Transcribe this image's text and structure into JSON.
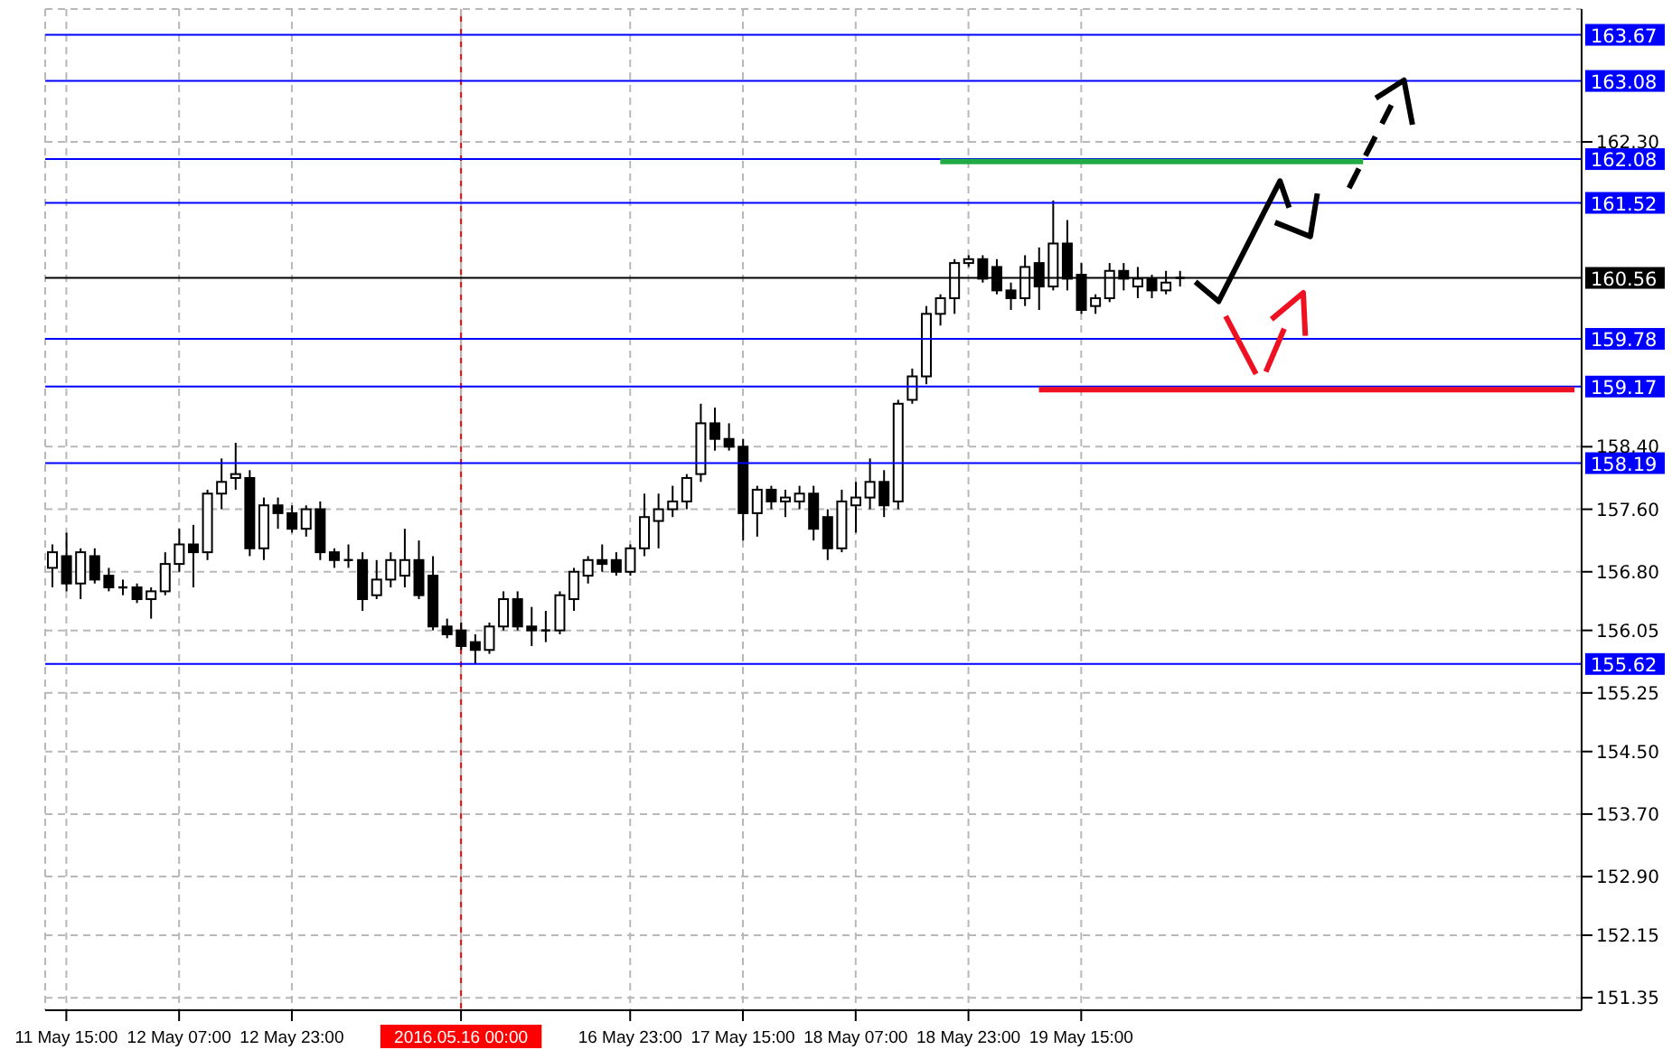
{
  "chart_data": {
    "type": "candlestick",
    "categories": [
      null,
      "11 May 15:00",
      null,
      null,
      null,
      null,
      null,
      null,
      null,
      "12 May 07:00",
      null,
      null,
      null,
      null,
      null,
      null,
      null,
      "12 May 23:00",
      null,
      null,
      null,
      null,
      null,
      null,
      null,
      null,
      null,
      null,
      null,
      "2016.05.16 00:00",
      null,
      null,
      null,
      null,
      null,
      null,
      null,
      null,
      null,
      null,
      null,
      "16 May 23:00",
      null,
      null,
      null,
      null,
      null,
      null,
      null,
      "17 May 15:00",
      null,
      null,
      null,
      null,
      null,
      null,
      null,
      "18 May 07:00",
      null,
      null,
      null,
      null,
      null,
      null,
      null,
      "18 May 23:00",
      null,
      null,
      null,
      null,
      null,
      null,
      null,
      "19 May 15:00",
      null,
      null,
      null,
      null,
      null,
      null,
      null,
      null,
      null,
      null,
      null,
      null,
      null,
      null,
      null,
      null,
      null,
      null,
      null,
      null,
      null,
      null,
      null,
      null,
      null,
      null,
      null,
      null,
      null,
      null,
      null,
      null,
      null,
      null,
      null
    ],
    "ohlc": [
      [
        156.85,
        157.15,
        156.6,
        157.05
      ],
      [
        157.0,
        157.3,
        156.55,
        156.65
      ],
      [
        156.65,
        157.1,
        156.45,
        157.05
      ],
      [
        157.0,
        157.1,
        156.65,
        156.7
      ],
      [
        156.75,
        156.85,
        156.55,
        156.6
      ],
      [
        156.6,
        156.7,
        156.5,
        156.6
      ],
      [
        156.6,
        156.65,
        156.4,
        156.45
      ],
      [
        156.45,
        156.6,
        156.2,
        156.55
      ],
      [
        156.55,
        157.05,
        156.5,
        156.9
      ],
      [
        156.9,
        157.35,
        156.8,
        157.15
      ],
      [
        157.15,
        157.4,
        156.6,
        157.05
      ],
      [
        157.05,
        157.85,
        156.95,
        157.8
      ],
      [
        157.8,
        158.25,
        157.6,
        157.95
      ],
      [
        158.0,
        158.45,
        157.85,
        158.05
      ],
      [
        158.0,
        158.1,
        157.0,
        157.1
      ],
      [
        157.1,
        157.75,
        156.95,
        157.65
      ],
      [
        157.65,
        157.75,
        157.35,
        157.55
      ],
      [
        157.55,
        157.65,
        157.3,
        157.35
      ],
      [
        157.35,
        157.65,
        157.25,
        157.6
      ],
      [
        157.6,
        157.7,
        156.95,
        157.05
      ],
      [
        157.05,
        157.1,
        156.85,
        156.95
      ],
      [
        156.95,
        157.15,
        156.85,
        156.95
      ],
      [
        156.95,
        157.05,
        156.3,
        156.45
      ],
      [
        156.5,
        156.95,
        156.45,
        156.7
      ],
      [
        156.7,
        157.05,
        156.6,
        156.95
      ],
      [
        156.75,
        157.35,
        156.6,
        156.95
      ],
      [
        156.95,
        157.2,
        156.45,
        156.5
      ],
      [
        156.75,
        157.0,
        156.05,
        156.1
      ],
      [
        156.1,
        156.2,
        155.95,
        156.0
      ],
      [
        156.05,
        156.15,
        155.8,
        155.85
      ],
      [
        155.9,
        156.0,
        155.62,
        155.8
      ],
      [
        155.8,
        156.15,
        155.75,
        156.1
      ],
      [
        156.1,
        156.55,
        156.05,
        156.45
      ],
      [
        156.45,
        156.55,
        156.05,
        156.1
      ],
      [
        156.1,
        156.35,
        155.85,
        156.05
      ],
      [
        156.05,
        156.3,
        155.9,
        156.05
      ],
      [
        156.05,
        156.55,
        156.0,
        156.5
      ],
      [
        156.45,
        156.85,
        156.3,
        156.8
      ],
      [
        156.75,
        157.0,
        156.65,
        156.95
      ],
      [
        156.95,
        157.15,
        156.8,
        156.9
      ],
      [
        156.95,
        157.05,
        156.75,
        156.8
      ],
      [
        156.8,
        157.15,
        156.75,
        157.1
      ],
      [
        157.1,
        157.8,
        157.0,
        157.5
      ],
      [
        157.45,
        157.8,
        157.1,
        157.6
      ],
      [
        157.6,
        157.9,
        157.5,
        157.7
      ],
      [
        157.7,
        158.05,
        157.6,
        158.0
      ],
      [
        158.05,
        158.95,
        157.95,
        158.7
      ],
      [
        158.7,
        158.9,
        158.35,
        158.5
      ],
      [
        158.5,
        158.7,
        158.35,
        158.4
      ],
      [
        158.4,
        158.5,
        157.2,
        157.55
      ],
      [
        157.55,
        157.9,
        157.25,
        157.85
      ],
      [
        157.85,
        157.9,
        157.6,
        157.7
      ],
      [
        157.7,
        157.85,
        157.5,
        157.75
      ],
      [
        157.7,
        157.9,
        157.6,
        157.8
      ],
      [
        157.8,
        157.9,
        157.2,
        157.35
      ],
      [
        157.5,
        157.6,
        156.95,
        157.1
      ],
      [
        157.1,
        157.85,
        157.05,
        157.7
      ],
      [
        157.65,
        157.95,
        157.3,
        157.75
      ],
      [
        157.75,
        158.25,
        157.6,
        157.95
      ],
      [
        157.95,
        158.1,
        157.5,
        157.65
      ],
      [
        157.7,
        159.0,
        157.6,
        158.95
      ],
      [
        159.0,
        159.4,
        158.95,
        159.3
      ],
      [
        159.3,
        160.2,
        159.2,
        160.1
      ],
      [
        160.1,
        160.35,
        159.95,
        160.3
      ],
      [
        160.3,
        160.8,
        160.1,
        160.75
      ],
      [
        160.75,
        160.85,
        160.7,
        160.8
      ],
      [
        160.8,
        160.85,
        160.5,
        160.55
      ],
      [
        160.7,
        160.8,
        160.35,
        160.4
      ],
      [
        160.4,
        160.5,
        160.15,
        160.3
      ],
      [
        160.3,
        160.85,
        160.2,
        160.7
      ],
      [
        160.75,
        160.95,
        160.15,
        160.45
      ],
      [
        160.45,
        161.55,
        160.4,
        161.0
      ],
      [
        161.0,
        161.3,
        160.4,
        160.55
      ],
      [
        160.6,
        160.75,
        160.1,
        160.15
      ],
      [
        160.2,
        160.35,
        160.1,
        160.3
      ],
      [
        160.3,
        160.75,
        160.25,
        160.65
      ],
      [
        160.65,
        160.75,
        160.4,
        160.55
      ],
      [
        160.45,
        160.7,
        160.3,
        160.55
      ],
      [
        160.55,
        160.6,
        160.3,
        160.4
      ],
      [
        160.4,
        160.65,
        160.35,
        160.5
      ],
      [
        160.55,
        160.65,
        160.45,
        160.56
      ],
      null,
      null,
      null,
      null,
      null,
      null,
      null,
      null,
      null,
      null,
      null,
      null,
      null,
      null,
      null,
      null,
      null,
      null,
      null,
      null,
      null,
      null,
      null,
      null,
      null,
      null,
      null,
      null
    ],
    "series": [
      {
        "type": "line",
        "color": "#22aa44",
        "values": [
          null,
          null,
          null,
          null,
          null,
          null,
          null,
          null,
          null,
          null,
          null,
          null,
          null,
          null,
          null,
          null,
          null,
          null,
          null,
          null,
          null,
          null,
          null,
          null,
          null,
          null,
          null,
          null,
          null,
          null,
          null,
          null,
          null,
          null,
          null,
          null,
          null,
          null,
          null,
          null,
          null,
          null,
          null,
          null,
          null,
          null,
          null,
          null,
          null,
          null,
          null,
          null,
          null,
          null,
          null,
          null,
          null,
          null,
          null,
          null,
          null,
          null,
          null,
          162.05,
          162.05,
          162.05,
          162.05,
          162.05,
          162.05,
          162.05,
          162.05,
          162.05,
          162.05,
          162.05,
          162.05,
          162.05,
          162.05,
          162.05,
          162.05,
          162.05,
          162.05,
          162.05,
          162.05,
          162.05,
          162.05,
          162.05,
          162.05,
          162.05,
          162.05,
          162.05,
          162.05,
          162.05,
          162.05,
          162.05,
          null,
          null,
          null,
          null,
          null,
          null,
          null,
          null,
          null,
          null,
          null,
          null,
          null,
          null,
          null
        ]
      },
      {
        "type": "line",
        "color": "#ee1122",
        "values": [
          null,
          null,
          null,
          null,
          null,
          null,
          null,
          null,
          null,
          null,
          null,
          null,
          null,
          null,
          null,
          null,
          null,
          null,
          null,
          null,
          null,
          null,
          null,
          null,
          null,
          null,
          null,
          null,
          null,
          null,
          null,
          null,
          null,
          null,
          null,
          null,
          null,
          null,
          null,
          null,
          null,
          null,
          null,
          null,
          null,
          null,
          null,
          null,
          null,
          null,
          null,
          null,
          null,
          null,
          null,
          null,
          null,
          null,
          null,
          null,
          null,
          null,
          null,
          null,
          null,
          null,
          null,
          null,
          null,
          null,
          159.13,
          159.13,
          159.13,
          159.13,
          159.13,
          159.13,
          159.13,
          159.13,
          159.13,
          159.13,
          159.13,
          159.13,
          159.13,
          159.13,
          159.13,
          159.13,
          159.13,
          159.13,
          159.13,
          159.13,
          159.13,
          159.13,
          159.13,
          159.13,
          159.13,
          159.13,
          159.13,
          159.13,
          159.13,
          159.13,
          159.13,
          159.13,
          159.13,
          159.13,
          159.13,
          159.13,
          159.13,
          159.13,
          159.13
        ]
      }
    ],
    "ylim": [
      151.19,
      164.0
    ],
    "yticks": [
      151.35,
      152.15,
      {
        "value": 152.9,
        "label": "152.90"
      },
      {
        "value": 153.7,
        "label": "153.70"
      },
      {
        "value": 154.5,
        "label": "154.50"
      },
      155.25,
      156.05,
      {
        "value": 156.8,
        "label": "156.80"
      },
      {
        "value": 157.6,
        "label": "157.60"
      },
      {
        "value": 158.4,
        "label": "158.40"
      },
      {
        "value": 162.3,
        "label": "162.30"
      }
    ],
    "grid": true,
    "ref_lines": [
      {
        "axis": "y",
        "value": 163.67,
        "label": "163.67",
        "color": "#0000ff"
      },
      {
        "axis": "y",
        "value": 163.08,
        "label": "163.08",
        "color": "#0000ff"
      },
      {
        "axis": "y",
        "value": 162.08,
        "label": "162.08",
        "color": "#0000ff"
      },
      {
        "axis": "y",
        "value": 161.52,
        "label": "161.52",
        "color": "#0000ff"
      },
      {
        "axis": "y",
        "value": 160.56,
        "label": "160.56",
        "color": "#000000"
      },
      {
        "axis": "y",
        "value": 159.78,
        "label": "159.78",
        "color": "#0000ff"
      },
      {
        "axis": "y",
        "value": 159.17,
        "label": "159.17",
        "color": "#0000ff"
      },
      {
        "axis": "y",
        "value": 158.19,
        "label": "158.19",
        "color": "#0000ff"
      },
      {
        "axis": "y",
        "value": 155.62,
        "label": "155.62",
        "color": "#0000ff"
      },
      {
        "axis": "x",
        "value": "2016.05.16 00:00",
        "color": "#ff0000"
      }
    ]
  }
}
